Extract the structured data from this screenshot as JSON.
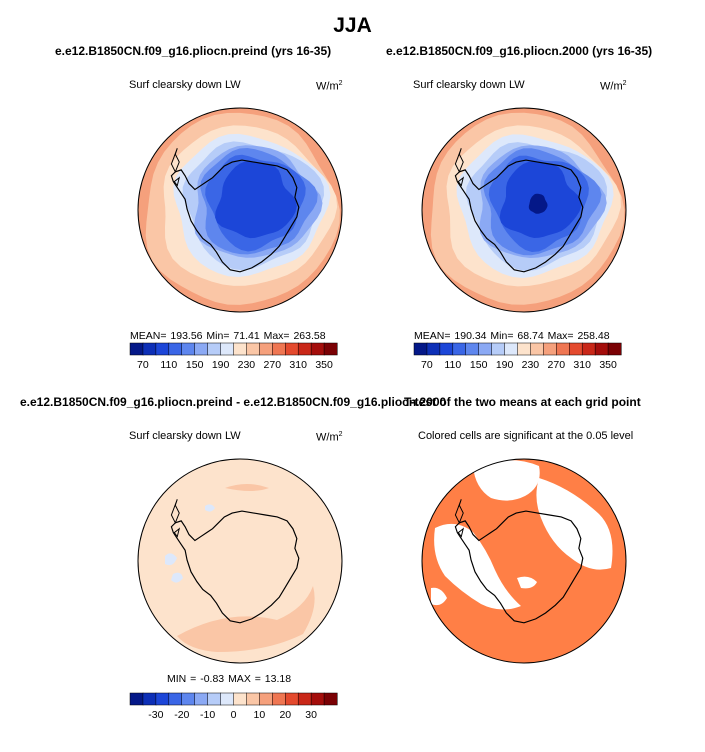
{
  "main_title": "JJA",
  "panels": {
    "p1": {
      "title": "e.e12.B1850CN.f09_g16.pliocn.preind (yrs 16-35)",
      "variable": "Surf clearsky down LW",
      "units": "W/m",
      "stats": "MEAN=  193.56   Min=   71.41   Max=  263.58"
    },
    "p2": {
      "title": "e.e12.B1850CN.f09_g16.pliocn.2000 (yrs 16-35)",
      "variable": "Surf clearsky down LW",
      "units": "W/m",
      "stats": "MEAN=  190.34   Min=   68.74   Max=  258.48"
    },
    "p3": {
      "title": "e.e12.B1850CN.f09_g16.pliocn.preind - e.e12.B1850CN.f09_g16.pliocn.2000",
      "variable": "Surf clearsky down LW",
      "units": "W/m",
      "stats": "MIN =   -0.83  MAX =   13.18"
    },
    "p4": {
      "title": "T-test of the two means at each grid point",
      "subtitle": "Colored cells are significant at the 0.05 level"
    }
  },
  "chart_data": [
    {
      "type": "heatmap",
      "projection": "south-polar-stereographic",
      "title": "e.e12.B1850CN.f09_g16.pliocn.preind (yrs 16-35)",
      "variable": "Surf clearsky down LW",
      "units": "W/m2",
      "mean": 193.56,
      "min": 71.41,
      "max": 263.58,
      "colorbar": {
        "levels": [
          70,
          90,
          110,
          130,
          150,
          170,
          190,
          210,
          230,
          250,
          270,
          290,
          310,
          330,
          350
        ],
        "tick_labels": [
          "70",
          "110",
          "150",
          "190",
          "230",
          "270",
          "310",
          "350"
        ],
        "colors": [
          "#041888",
          "#0d2fb7",
          "#1c46d8",
          "#3a66e6",
          "#5e86ee",
          "#8ba9f4",
          "#b6ccf8",
          "#dde8fb",
          "#fde3cc",
          "#fac6a6",
          "#f5a07c",
          "#ef7652",
          "#e44a2e",
          "#c92718",
          "#a40d0b",
          "#7a0104"
        ]
      }
    },
    {
      "type": "heatmap",
      "projection": "south-polar-stereographic",
      "title": "e.e12.B1850CN.f09_g16.pliocn.2000 (yrs 16-35)",
      "variable": "Surf clearsky down LW",
      "units": "W/m2",
      "mean": 190.34,
      "min": 68.74,
      "max": 258.48,
      "colorbar": {
        "levels": [
          70,
          90,
          110,
          130,
          150,
          170,
          190,
          210,
          230,
          250,
          270,
          290,
          310,
          330,
          350
        ],
        "tick_labels": [
          "70",
          "110",
          "150",
          "190",
          "230",
          "270",
          "310",
          "350"
        ],
        "colors": [
          "#041888",
          "#0d2fb7",
          "#1c46d8",
          "#3a66e6",
          "#5e86ee",
          "#8ba9f4",
          "#b6ccf8",
          "#dde8fb",
          "#fde3cc",
          "#fac6a6",
          "#f5a07c",
          "#ef7652",
          "#e44a2e",
          "#c92718",
          "#a40d0b",
          "#7a0104"
        ]
      }
    },
    {
      "type": "heatmap",
      "projection": "south-polar-stereographic",
      "title": "e.e12.B1850CN.f09_g16.pliocn.preind - e.e12.B1850CN.f09_g16.pliocn.2000",
      "variable": "Surf clearsky down LW",
      "units": "W/m2",
      "min": -0.83,
      "max": 13.18,
      "colorbar": {
        "levels": [
          -35,
          -30,
          -25,
          -20,
          -15,
          -10,
          -5,
          0,
          5,
          10,
          15,
          20,
          25,
          30,
          35
        ],
        "tick_labels": [
          "-30",
          "-20",
          "-10",
          "0",
          "10",
          "20",
          "30"
        ],
        "colors": [
          "#041888",
          "#0d2fb7",
          "#1c46d8",
          "#3a66e6",
          "#5e86ee",
          "#8ba9f4",
          "#b6ccf8",
          "#dde8fb",
          "#fde3cc",
          "#fac6a6",
          "#f5a07c",
          "#ef7652",
          "#e44a2e",
          "#c92718",
          "#a40d0b",
          "#7a0104"
        ]
      }
    },
    {
      "type": "heatmap",
      "projection": "south-polar-stereographic",
      "title": "T-test of the two means at each grid point",
      "subtitle": "Colored cells are significant at the 0.05 level",
      "significant_color": "#ff7f46"
    }
  ],
  "colors": {
    "coast": "#000000",
    "significant": "#ff7f46"
  }
}
